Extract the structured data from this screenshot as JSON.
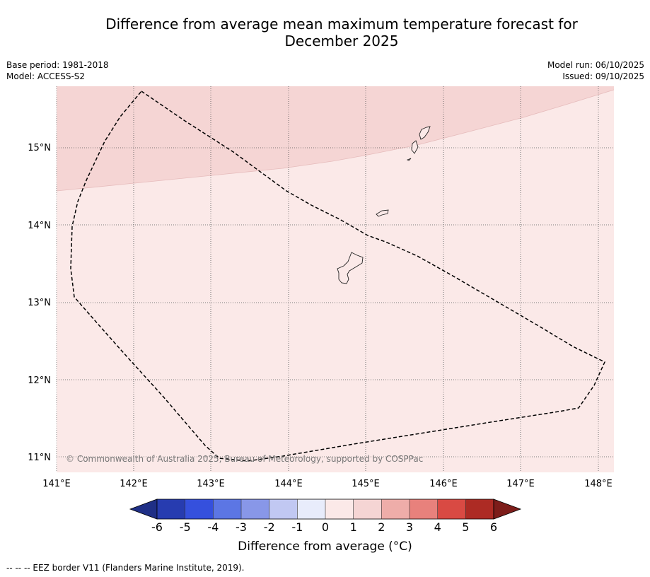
{
  "title_line1": "Difference from average mean maximum temperature forecast for",
  "title_line2": "December 2025",
  "meta": {
    "base_period": "Base period: 1981-2018",
    "model": "Model: ACCESS-S2",
    "model_run": "Model run: 06/10/2025",
    "issued": "Issued: 09/10/2025"
  },
  "map": {
    "lon_ticks": [
      "141°E",
      "142°E",
      "143°E",
      "144°E",
      "145°E",
      "146°E",
      "147°E",
      "148°E"
    ],
    "lat_ticks": [
      "15°N",
      "14°N",
      "13°N",
      "12°N",
      "11°N"
    ],
    "extent": {
      "lon_min": 141.0,
      "lon_max": 148.2,
      "lat_min": 10.8,
      "lat_max": 15.8
    },
    "credit": "© Commonwealth of Australia 2025, Bureau of Meteorology, supported by COSPPac",
    "colors": {
      "anomaly_0_1": "#fbe9e8",
      "anomaly_1_2": "#f5d5d4"
    }
  },
  "colorbar": {
    "ticks": [
      "-6",
      "-5",
      "-4",
      "-3",
      "-2",
      "-1",
      "0",
      "1",
      "2",
      "3",
      "4",
      "5",
      "6"
    ],
    "colors": [
      "#1f2f86",
      "#273cb0",
      "#3550dd",
      "#5c76e4",
      "#8897e8",
      "#c1c8f2",
      "#e8ecfb",
      "#fbe9e8",
      "#f5d5d4",
      "#eeada9",
      "#e8817c",
      "#d94a43",
      "#ad2b24",
      "#7d1d1a"
    ],
    "label": "Difference from average (°C)"
  },
  "footer": "-- -- -- EEZ border V11 (Flanders Marine Institute, 2019)."
}
